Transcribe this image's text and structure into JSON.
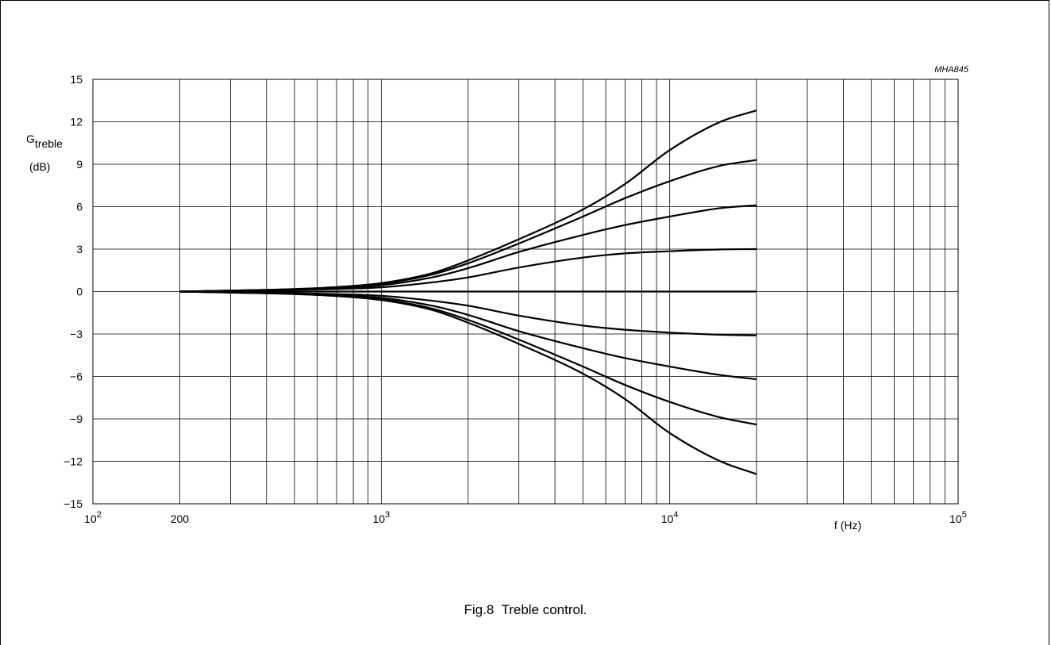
{
  "figure": {
    "code": "MHA845",
    "caption": "Fig.8  Treble control."
  },
  "chart_data": {
    "type": "line",
    "title": "",
    "xlabel": "f (Hz)",
    "ylabel_main": "G",
    "ylabel_sub": "treble",
    "ylabel_unit": "(dB)",
    "x_scale": "log",
    "xlim": [
      100,
      100000
    ],
    "ylim": [
      -15,
      15
    ],
    "grid": true,
    "y_ticks": [
      "15",
      "12",
      "9",
      "6",
      "3",
      "0",
      "−3",
      "−6",
      "−9",
      "−12",
      "−15"
    ],
    "y_tick_values": [
      15,
      12,
      9,
      6,
      3,
      0,
      -3,
      -6,
      -9,
      -12,
      -15
    ],
    "x_ticks": [
      {
        "value": 100,
        "base": "10",
        "exp": "2"
      },
      {
        "value": 200,
        "base": "200",
        "exp": ""
      },
      {
        "value": 1000,
        "base": "10",
        "exp": "3"
      },
      {
        "value": 10000,
        "base": "10",
        "exp": "4"
      },
      {
        "value": 100000,
        "base": "10",
        "exp": "5"
      }
    ],
    "x": [
      200,
      300,
      500,
      700,
      1000,
      1500,
      2000,
      3000,
      5000,
      7000,
      10000,
      15000,
      20000
    ],
    "series": [
      {
        "values": [
          0,
          0.07,
          0.18,
          0.32,
          0.6,
          1.3,
          2.2,
          3.7,
          5.8,
          7.6,
          10.0,
          12.0,
          12.8
        ]
      },
      {
        "values": [
          0,
          0.07,
          0.17,
          0.3,
          0.55,
          1.2,
          2.0,
          3.4,
          5.3,
          6.6,
          7.8,
          8.9,
          9.3
        ]
      },
      {
        "values": [
          0,
          0.06,
          0.15,
          0.26,
          0.45,
          1.0,
          1.65,
          2.8,
          4.0,
          4.7,
          5.3,
          5.9,
          6.1
        ]
      },
      {
        "values": [
          0,
          0.05,
          0.12,
          0.18,
          0.3,
          0.65,
          1.0,
          1.7,
          2.4,
          2.7,
          2.85,
          2.98,
          3.0
        ]
      },
      {
        "values": [
          0,
          0,
          0,
          0,
          0,
          0,
          0,
          0,
          0,
          0,
          0,
          0,
          0
        ]
      },
      {
        "values": [
          0,
          -0.05,
          -0.12,
          -0.18,
          -0.3,
          -0.65,
          -1.0,
          -1.7,
          -2.4,
          -2.7,
          -2.9,
          -3.05,
          -3.1
        ]
      },
      {
        "values": [
          0,
          -0.06,
          -0.15,
          -0.26,
          -0.45,
          -1.0,
          -1.65,
          -2.8,
          -4.0,
          -4.7,
          -5.3,
          -5.9,
          -6.2
        ]
      },
      {
        "values": [
          0,
          -0.07,
          -0.17,
          -0.3,
          -0.55,
          -1.2,
          -2.0,
          -3.4,
          -5.3,
          -6.6,
          -7.8,
          -8.9,
          -9.4
        ]
      },
      {
        "values": [
          0,
          -0.07,
          -0.18,
          -0.32,
          -0.6,
          -1.3,
          -2.2,
          -3.7,
          -5.8,
          -7.6,
          -10.0,
          -12.0,
          -12.9
        ]
      }
    ]
  }
}
